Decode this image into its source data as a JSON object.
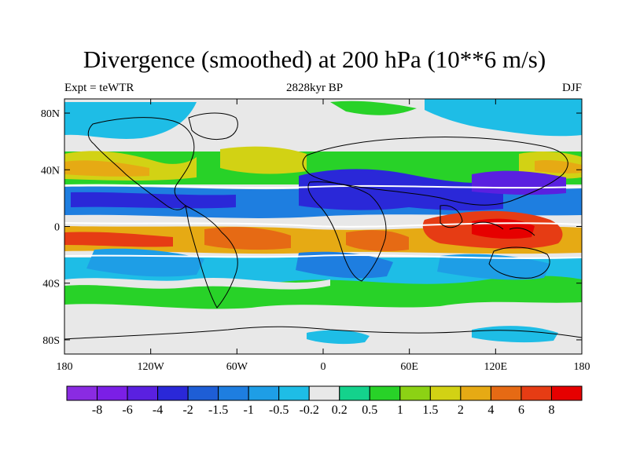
{
  "map": {
    "title": "Divergence (smoothed) at 200 hPa (10**6 m/s)",
    "left_label": "Expt = teWTR",
    "center_label": "2828kyr BP",
    "right_label": "DJF",
    "projection": "cylindrical-equidistant",
    "lon_range": [
      -180,
      180
    ],
    "lat_range": [
      -90,
      90
    ],
    "lon_ticks": [
      {
        "value": -180,
        "label": "180"
      },
      {
        "value": -120,
        "label": "120W"
      },
      {
        "value": -60,
        "label": "60W"
      },
      {
        "value": 0,
        "label": "0"
      },
      {
        "value": 60,
        "label": "60E"
      },
      {
        "value": 120,
        "label": "120E"
      },
      {
        "value": 180,
        "label": "180"
      }
    ],
    "lat_ticks": [
      {
        "value": 80,
        "label": "80N"
      },
      {
        "value": 40,
        "label": "40N"
      },
      {
        "value": 0,
        "label": "0"
      },
      {
        "value": -40,
        "label": "40S"
      },
      {
        "value": -80,
        "label": "80S"
      }
    ]
  },
  "colorbar": {
    "colors": [
      "#8a2be2",
      "#7b1fe6",
      "#5a20e0",
      "#2a28d8",
      "#1e5ed6",
      "#1e7ee0",
      "#1e9ee6",
      "#1ebde6",
      "#e8e8e8",
      "#14d28c",
      "#28d228",
      "#8cd214",
      "#d2d214",
      "#e6aa14",
      "#e66a14",
      "#e63c14",
      "#e60000"
    ],
    "labels": [
      "-8",
      "-6",
      "-4",
      "-2",
      "-1.5",
      "-1",
      "-0.5",
      "-0.2",
      "0.2",
      "0.5",
      "1",
      "1.5",
      "2",
      "4",
      "6",
      "8"
    ]
  }
}
